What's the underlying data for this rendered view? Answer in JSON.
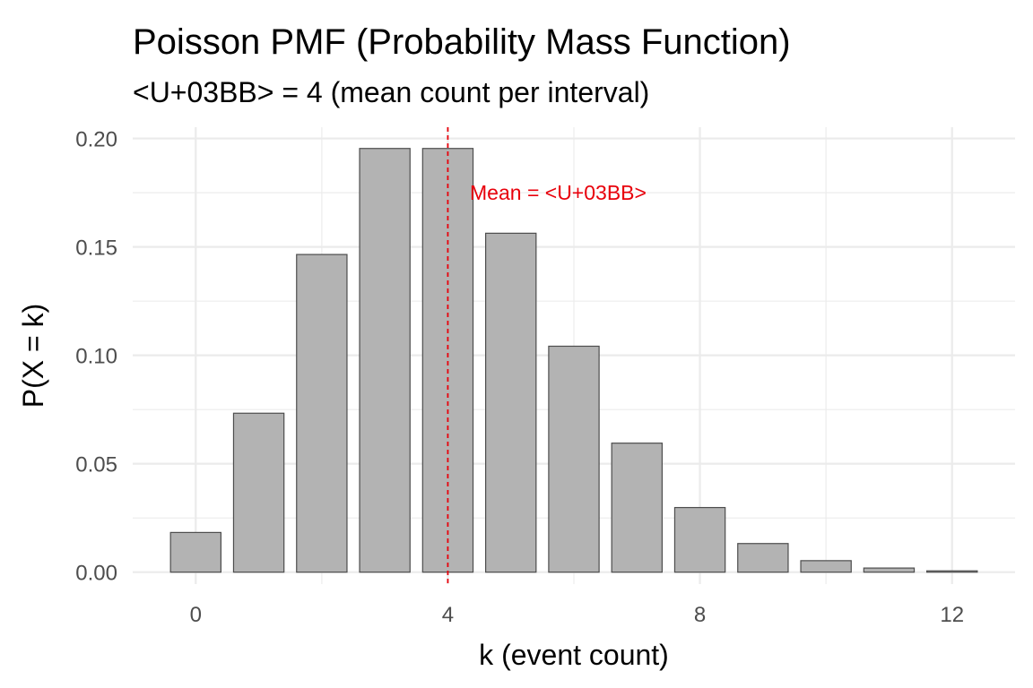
{
  "chart_data": {
    "type": "bar",
    "title": "Poisson PMF (Probability Mass Function)",
    "subtitle": "<U+03BB> = 4 (mean count per interval)",
    "xlabel": "k (event count)",
    "ylabel": "P(X = k)",
    "x": [
      0,
      1,
      2,
      3,
      4,
      5,
      6,
      7,
      8,
      9,
      10,
      11,
      12
    ],
    "values": [
      0.0183,
      0.0733,
      0.1465,
      0.1954,
      0.1954,
      0.1563,
      0.1042,
      0.0595,
      0.0298,
      0.0132,
      0.0053,
      0.0019,
      0.0006
    ],
    "xlim": [
      -1,
      13
    ],
    "ylim": [
      -0.0055,
      0.2052
    ],
    "x_ticks": [
      0,
      4,
      8,
      12
    ],
    "x_tick_labels": [
      "0",
      "4",
      "8",
      "12"
    ],
    "y_ticks": [
      0,
      0.05,
      0.1,
      0.15,
      0.2
    ],
    "y_tick_labels": [
      "0.00",
      "0.05",
      "0.10",
      "0.15",
      "0.20"
    ],
    "grid": true,
    "bar_color": "#b3b3b3",
    "bar_border_color": "#4d4d4d",
    "mean_line": {
      "x": 4,
      "color": "#e8000b",
      "style": "dashed"
    },
    "annotation": {
      "text": "Mean = <U+03BB>",
      "x": 4.35,
      "y": 0.175,
      "color": "#e8000b"
    }
  }
}
